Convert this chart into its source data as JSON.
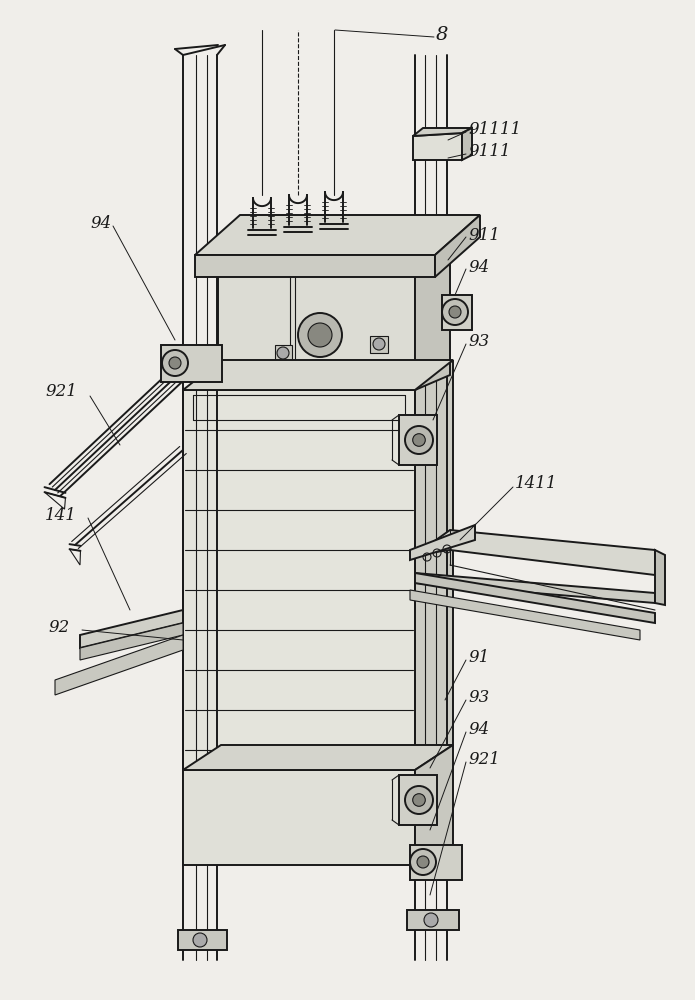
{
  "bg_color": "#f0eeea",
  "line_color": "#1a1a1a",
  "lw_main": 1.4,
  "lw_thin": 0.8,
  "lw_ann": 0.7,
  "font_size": 12,
  "italic_font": "italic"
}
